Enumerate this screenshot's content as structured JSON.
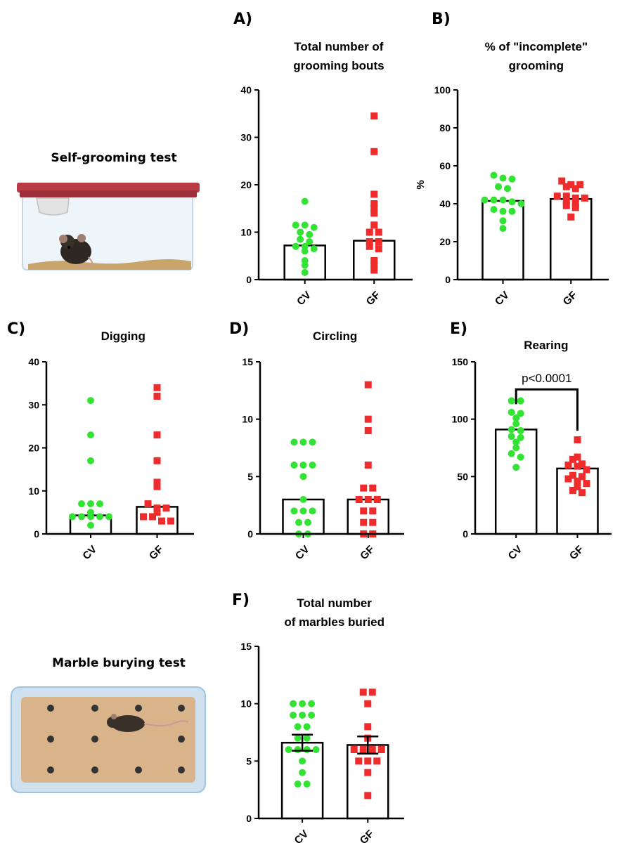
{
  "scenes": [
    {
      "id": "grooming",
      "title": "Self-grooming test"
    },
    {
      "id": "marble",
      "title": "Marble burying test"
    }
  ],
  "colors": {
    "cv": "#33e333",
    "gf": "#ef2b2b",
    "axis": "#000000",
    "cage_lid": "#b73a45",
    "bedding": "#c9a46b",
    "tray_border": "#9dc4e0",
    "tray_fill": "#d9b48b"
  },
  "icons": [
    "mouse-in-cage-illustration",
    "mouse-on-marbles-illustration"
  ],
  "chart_data": [
    {
      "type": "bar",
      "panel": "A)",
      "title": [
        "Total number of",
        "grooming bouts"
      ],
      "ylabel": "",
      "categories": [
        "CV",
        "GF"
      ],
      "ylim": [
        0,
        40
      ],
      "yticks": [
        0,
        10,
        20,
        30,
        40
      ],
      "bars": [
        7.2,
        8.2
      ],
      "error": null,
      "series": [
        {
          "name": "CV",
          "marker": "circle",
          "points": [
            16.5,
            11.5,
            11.5,
            11,
            10,
            9.5,
            8.5,
            8,
            7,
            7,
            6,
            6.5,
            4,
            3,
            1.5
          ]
        },
        {
          "name": "GF",
          "marker": "square",
          "points": [
            34.5,
            27,
            18,
            16,
            15,
            14,
            11.5,
            10,
            10,
            8,
            8,
            7,
            6.5,
            4,
            3.2,
            2
          ]
        }
      ],
      "annotation": null
    },
    {
      "type": "bar",
      "panel": "B)",
      "title": [
        "% of \"incomplete\"",
        "grooming"
      ],
      "ylabel": "%",
      "categories": [
        "CV",
        "GF"
      ],
      "ylim": [
        0,
        100
      ],
      "yticks": [
        0,
        20,
        40,
        60,
        80,
        100
      ],
      "bars": [
        41.5,
        42.5
      ],
      "error": null,
      "series": [
        {
          "name": "CV",
          "marker": "circle",
          "points": [
            55,
            53.5,
            53,
            49,
            48,
            42,
            42,
            42,
            41,
            40,
            37,
            36,
            36,
            31,
            27
          ]
        },
        {
          "name": "GF",
          "marker": "square",
          "points": [
            52,
            50,
            50,
            49,
            48,
            44,
            44,
            43,
            43,
            41,
            40,
            39,
            38,
            33
          ]
        }
      ],
      "annotation": null
    },
    {
      "type": "bar",
      "panel": "C)",
      "title": [
        "Digging"
      ],
      "ylabel": "",
      "categories": [
        "CV",
        "GF"
      ],
      "ylim": [
        0,
        40
      ],
      "yticks": [
        0,
        10,
        20,
        30,
        40
      ],
      "bars": [
        4.3,
        6.3
      ],
      "error": null,
      "series": [
        {
          "name": "CV",
          "marker": "circle",
          "points": [
            31,
            23,
            17,
            7,
            7,
            7,
            5,
            4,
            4,
            4,
            4,
            4,
            2
          ]
        },
        {
          "name": "GF",
          "marker": "square",
          "points": [
            34,
            32,
            23,
            17,
            12,
            11,
            7,
            6,
            6,
            5,
            4,
            4,
            3,
            3
          ]
        }
      ],
      "annotation": null
    },
    {
      "type": "bar",
      "panel": "D)",
      "title": [
        "Circling"
      ],
      "ylabel": "",
      "categories": [
        "CV",
        "GF"
      ],
      "ylim": [
        0,
        15
      ],
      "yticks": [
        0,
        5,
        10,
        15
      ],
      "bars": [
        3,
        3
      ],
      "error": null,
      "series": [
        {
          "name": "CV",
          "marker": "circle",
          "points": [
            8,
            8,
            8,
            6,
            6,
            6,
            5,
            3,
            2,
            2,
            2,
            1,
            1,
            0,
            0
          ]
        },
        {
          "name": "GF",
          "marker": "square",
          "points": [
            13,
            10,
            9,
            6,
            4,
            4,
            3,
            3,
            3,
            2,
            2,
            1,
            1,
            0,
            0
          ]
        }
      ],
      "annotation": null
    },
    {
      "type": "bar",
      "panel": "E)",
      "title": [
        "Rearing"
      ],
      "ylabel": "",
      "categories": [
        "CV",
        "GF"
      ],
      "ylim": [
        0,
        150
      ],
      "yticks": [
        0,
        50,
        100,
        150
      ],
      "bars": [
        91,
        57
      ],
      "error": null,
      "series": [
        {
          "name": "CV",
          "marker": "circle",
          "points": [
            116,
            116,
            106,
            105,
            101,
            96,
            91,
            90,
            85,
            84,
            80,
            75,
            70,
            67,
            58
          ]
        },
        {
          "name": "GF",
          "marker": "square",
          "points": [
            82,
            67,
            65,
            61,
            60,
            59,
            56,
            51,
            50,
            48,
            46,
            44,
            41,
            38,
            36
          ]
        }
      ],
      "annotation": {
        "text": "p<0.0001",
        "y": 126
      }
    },
    {
      "type": "bar",
      "panel": "F)",
      "title": [
        "Total number",
        "of marbles buried"
      ],
      "ylabel": "",
      "categories": [
        "CV",
        "GF"
      ],
      "ylim": [
        0,
        15
      ],
      "yticks": [
        0,
        5,
        10,
        15
      ],
      "bars": [
        6.6,
        6.4
      ],
      "error": [
        0.7,
        0.75
      ],
      "series": [
        {
          "name": "CV",
          "marker": "circle",
          "points": [
            10,
            10,
            10,
            9,
            9,
            9,
            8,
            8,
            7,
            7,
            6,
            6,
            6,
            6,
            5,
            4,
            3,
            3
          ]
        },
        {
          "name": "GF",
          "marker": "square",
          "points": [
            11,
            11,
            10,
            8,
            7,
            6,
            6,
            6,
            6,
            5,
            5,
            5,
            4,
            2
          ]
        }
      ],
      "annotation": null
    }
  ]
}
